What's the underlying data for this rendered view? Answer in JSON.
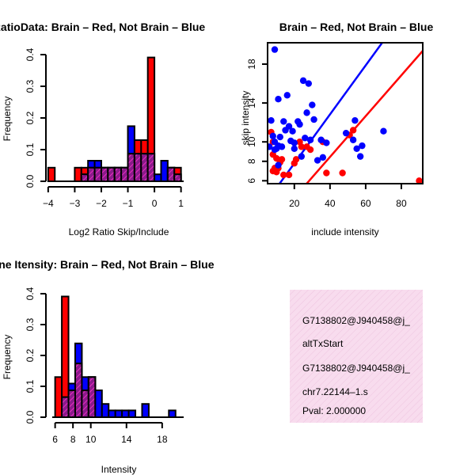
{
  "chart_data": [
    {
      "id": "ratio-hist",
      "type": "bar",
      "title": "RatioData: Brain – Red, Not Brain – Blue",
      "xlabel": "Log2 Ratio Skip/Include",
      "ylabel": "Frequency",
      "xlim": [
        -4.1,
        1.1
      ],
      "ylim": [
        0,
        0.4
      ],
      "xticks": [
        -4,
        -3,
        -2,
        -1,
        0,
        1
      ],
      "xtick_labels": [
        "−4",
        "−3",
        "−2",
        "−1",
        "0",
        "1"
      ],
      "yticks": [
        0.0,
        0.1,
        0.2,
        0.3,
        0.4
      ],
      "ytick_labels": [
        "0.0",
        "0.1",
        "0.2",
        "0.3",
        "0.4"
      ],
      "bin_edges": [
        -4.0,
        -3.75,
        -3.5,
        -3.25,
        -3.0,
        -2.75,
        -2.5,
        -2.25,
        -2.0,
        -1.75,
        -1.5,
        -1.25,
        -1.0,
        -0.75,
        -0.5,
        -0.25,
        0.0,
        0.25,
        0.5,
        0.75,
        1.0
      ],
      "series": [
        {
          "name": "Brain",
          "color": "#ff0000",
          "values": [
            0.043,
            0,
            0,
            0,
            0.043,
            0.043,
            0.043,
            0.043,
            0.043,
            0.043,
            0.043,
            0.043,
            0.087,
            0.13,
            0.13,
            0.391,
            0,
            0,
            0.043,
            0.043
          ]
        },
        {
          "name": "Not Brain",
          "color": "#0000ff",
          "values": [
            0,
            0,
            0,
            0,
            0,
            0.022,
            0.065,
            0.065,
            0.043,
            0.043,
            0.043,
            0.043,
            0.174,
            0.087,
            0.087,
            0.087,
            0.022,
            0.065,
            0.043,
            0.022
          ]
        }
      ]
    },
    {
      "id": "intensity-scatter",
      "type": "scatter",
      "title": "Brain – Red, Not Brain – Blue",
      "xlabel": "include intensity",
      "ylabel": "skip intensity",
      "xlim": [
        5,
        92
      ],
      "ylim": [
        5.7,
        20.2
      ],
      "xticks": [
        20,
        40,
        60,
        80
      ],
      "yticks": [
        6,
        8,
        10,
        14,
        18
      ],
      "series": [
        {
          "name": "Brain",
          "color": "#ff0000",
          "points": [
            [
              7,
              11
            ],
            [
              8,
              10
            ],
            [
              8,
              8.7
            ],
            [
              10,
              8.3
            ],
            [
              8,
              7
            ],
            [
              9,
              7.3
            ],
            [
              10,
              6.9
            ],
            [
              11,
              7.3
            ],
            [
              12,
              7.9
            ],
            [
              13,
              8.2
            ],
            [
              14,
              6.6
            ],
            [
              17,
              6.6
            ],
            [
              20,
              7.8
            ],
            [
              21,
              8.2
            ],
            [
              23,
              10
            ],
            [
              24,
              9.5
            ],
            [
              27,
              9.5
            ],
            [
              29,
              9.2
            ],
            [
              36,
              10
            ],
            [
              38,
              6.8
            ],
            [
              47,
              6.8
            ],
            [
              51,
              10.7
            ],
            [
              53,
              11.2
            ],
            [
              90,
              6
            ]
          ],
          "fit": {
            "intercept": 0.05,
            "slope": 0.21
          }
        },
        {
          "name": "Not Brain",
          "color": "#0000ff",
          "points": [
            [
              6,
              9.5
            ],
            [
              7,
              12.2
            ],
            [
              8,
              10.6
            ],
            [
              9,
              10
            ],
            [
              9,
              9.2
            ],
            [
              9,
              19.5
            ],
            [
              10,
              9.3
            ],
            [
              11,
              9.6
            ],
            [
              11,
              14.4
            ],
            [
              11,
              7.6
            ],
            [
              12,
              10.5
            ],
            [
              13,
              9.5
            ],
            [
              14,
              12.1
            ],
            [
              15,
              11.2
            ],
            [
              16,
              14.8
            ],
            [
              17,
              11.6
            ],
            [
              18,
              10.1
            ],
            [
              19,
              11.1
            ],
            [
              20,
              9.9
            ],
            [
              20,
              9.3
            ],
            [
              22,
              12.1
            ],
            [
              23,
              11.8
            ],
            [
              24,
              8.5
            ],
            [
              25,
              16.3
            ],
            [
              26,
              10.4
            ],
            [
              27,
              13
            ],
            [
              28,
              16
            ],
            [
              29,
              10.2
            ],
            [
              30,
              13.8
            ],
            [
              31,
              12.3
            ],
            [
              33,
              8.1
            ],
            [
              35,
              10.2
            ],
            [
              36,
              8.4
            ],
            [
              38,
              9.9
            ],
            [
              49,
              10.9
            ],
            [
              53,
              10.2
            ],
            [
              54,
              12.2
            ],
            [
              55,
              9.3
            ],
            [
              57,
              8.5
            ],
            [
              58,
              9.6
            ],
            [
              70,
              11.1
            ]
          ],
          "fit": {
            "intercept": 2.75,
            "slope": 0.252
          }
        }
      ]
    },
    {
      "id": "gene-intensity-hist",
      "type": "bar",
      "title": "Gene Itensity: Brain – Red, Not Brain – Blue",
      "xlabel": "Intensity",
      "ylabel": "Frequency",
      "xlim": [
        5.5,
        20.5
      ],
      "ylim": [
        0,
        0.4
      ],
      "xticks": [
        6,
        8,
        10,
        14,
        18
      ],
      "xtick_labels": [
        "6",
        "8",
        "10",
        "14",
        "18"
      ],
      "yticks": [
        0.0,
        0.1,
        0.2,
        0.3,
        0.4
      ],
      "ytick_labels": [
        "0.0",
        "0.1",
        "0.2",
        "0.3",
        "0.4"
      ],
      "bin_edges": [
        6,
        6.75,
        7.5,
        8.25,
        9,
        9.75,
        10.5,
        11.25,
        12,
        12.75,
        13.5,
        14.25,
        15,
        15.75,
        16.5,
        17.25,
        18,
        18.75,
        19.5
      ],
      "series": [
        {
          "name": "Brain",
          "color": "#ff0000",
          "values": [
            0.13,
            0.391,
            0.087,
            0.174,
            0.087,
            0.13,
            0,
            0,
            0,
            0,
            0,
            0,
            0,
            0,
            0,
            0,
            0,
            0
          ]
        },
        {
          "name": "Not Brain",
          "color": "#0000ff",
          "values": [
            0,
            0.065,
            0.109,
            0.239,
            0.13,
            0.13,
            0.087,
            0.043,
            0.022,
            0.022,
            0.022,
            0.022,
            0,
            0.043,
            0,
            0,
            0,
            0.022
          ]
        }
      ]
    }
  ],
  "info_panel": {
    "background": "#f8dcee",
    "lines": [
      "G7138802@J940458@j_",
      "altTxStart",
      "G7138802@J940458@j_",
      "chr7.22144–1.s"
    ],
    "pval_label": "Pval: 2.000000",
    "pval_color": "#aa0000"
  },
  "colors": {
    "overlap": "#8b1a8b",
    "hatch": "#ff33cc"
  }
}
